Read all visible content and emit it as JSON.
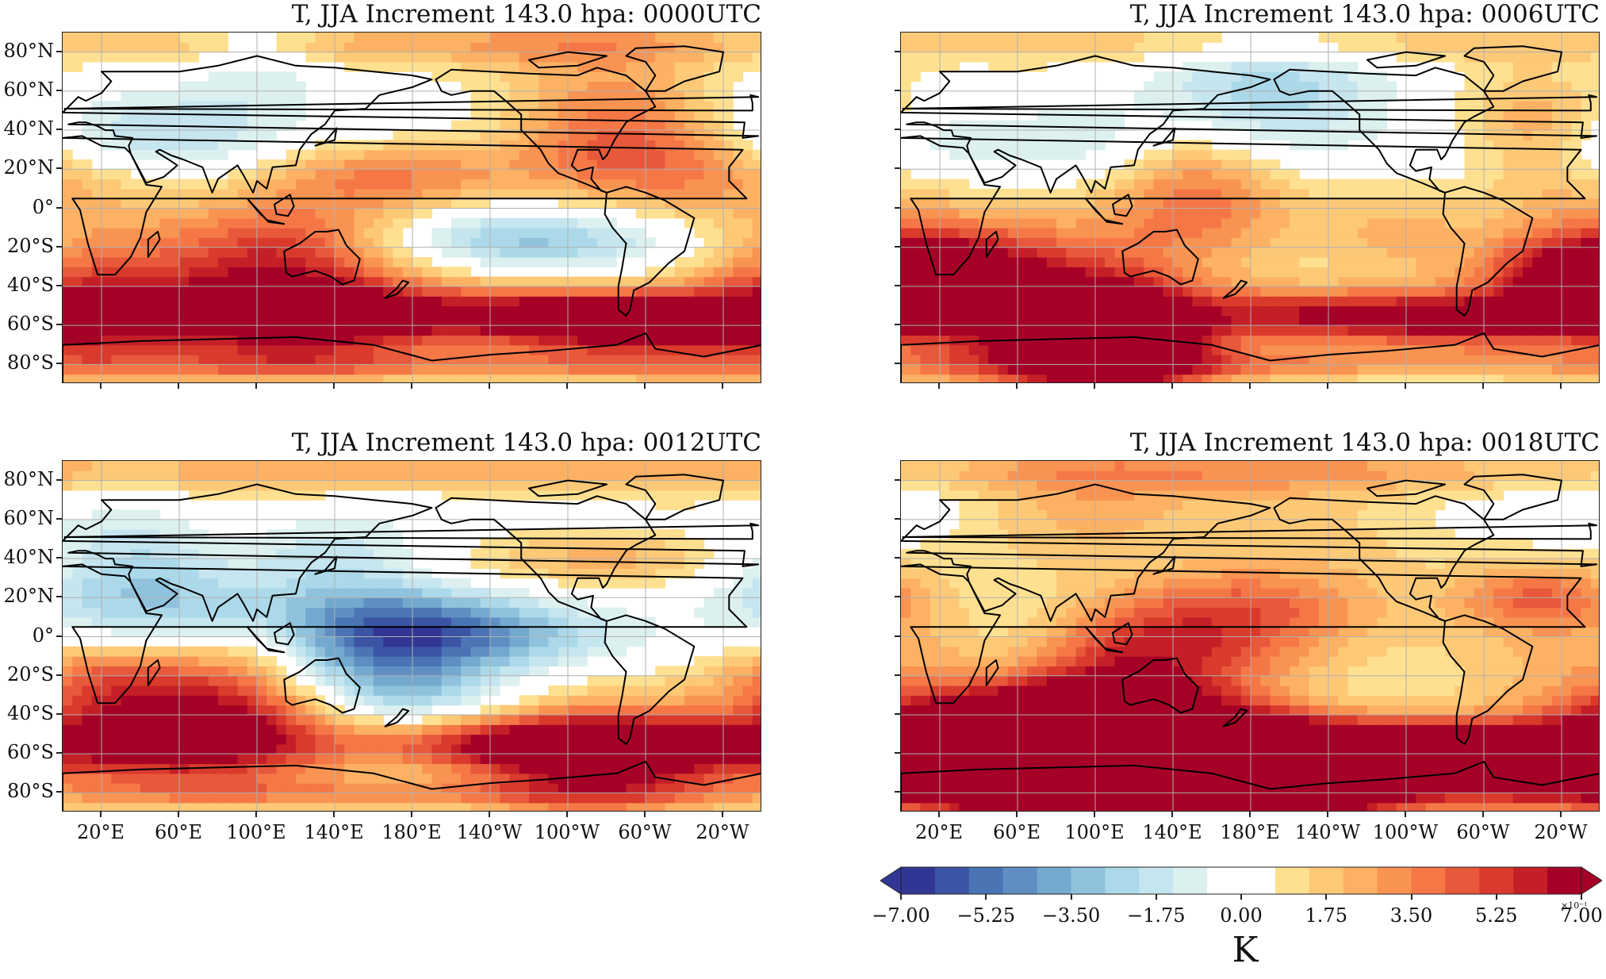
{
  "panels": [
    {
      "title": "T, JJA Increment 143.0 hpa: 0000UTC",
      "show_lat_labels": true,
      "show_lon_labels": false,
      "seed": 11
    },
    {
      "title": "T, JJA Increment 143.0 hpa: 0006UTC",
      "show_lat_labels": false,
      "show_lon_labels": false,
      "seed": 23
    },
    {
      "title": "T, JJA Increment 143.0 hpa: 0012UTC",
      "show_lat_labels": true,
      "show_lon_labels": true,
      "seed": 37
    },
    {
      "title": "T, JJA Increment 143.0 hpa: 0018UTC",
      "show_lat_labels": false,
      "show_lon_labels": true,
      "seed": 51
    }
  ],
  "lat_labels": [
    "80°N",
    "60°N",
    "40°N",
    "20°N",
    "0°",
    "20°S",
    "40°S",
    "60°S",
    "80°S"
  ],
  "lat_values": [
    80,
    60,
    40,
    20,
    0,
    -20,
    -40,
    -60,
    -80
  ],
  "lon_labels": [
    "20°E",
    "60°E",
    "100°E",
    "140°E",
    "180°E",
    "140°W",
    "100°W",
    "60°W",
    "20°W"
  ],
  "lon_values": [
    20,
    60,
    100,
    140,
    180,
    220,
    260,
    300,
    340
  ],
  "map_extent": {
    "lon_min": 0,
    "lon_max": 360,
    "lat_min": -90,
    "lat_max": 90
  },
  "colorbar": {
    "tick_labels": [
      "−7.00",
      "−5.25",
      "−3.50",
      "−1.75",
      "0.00",
      "1.75",
      "3.50",
      "5.25",
      "7.00"
    ],
    "tick_values": [
      -7,
      -5.25,
      -3.5,
      -1.75,
      0,
      1.75,
      3.5,
      5.25,
      7
    ],
    "unit": "K",
    "exponent": "×10⁻¹",
    "colormap": "RdYlBu_r",
    "colors": [
      "#313695",
      "#3b54a3",
      "#4a74b4",
      "#5f8fc2",
      "#74a9cf",
      "#90c2dd",
      "#abd9e9",
      "#c5e5ef",
      "#ddf0f0",
      "#ffffff",
      "#ffffff",
      "#fee090",
      "#fdc977",
      "#fdb163",
      "#f99352",
      "#f57746",
      "#e8583a",
      "#d93a2c",
      "#c41f27",
      "#a50026"
    ]
  },
  "colors": {
    "land_outline": "#000000",
    "grid": "#b0b0b0",
    "frame": "#222222"
  }
}
